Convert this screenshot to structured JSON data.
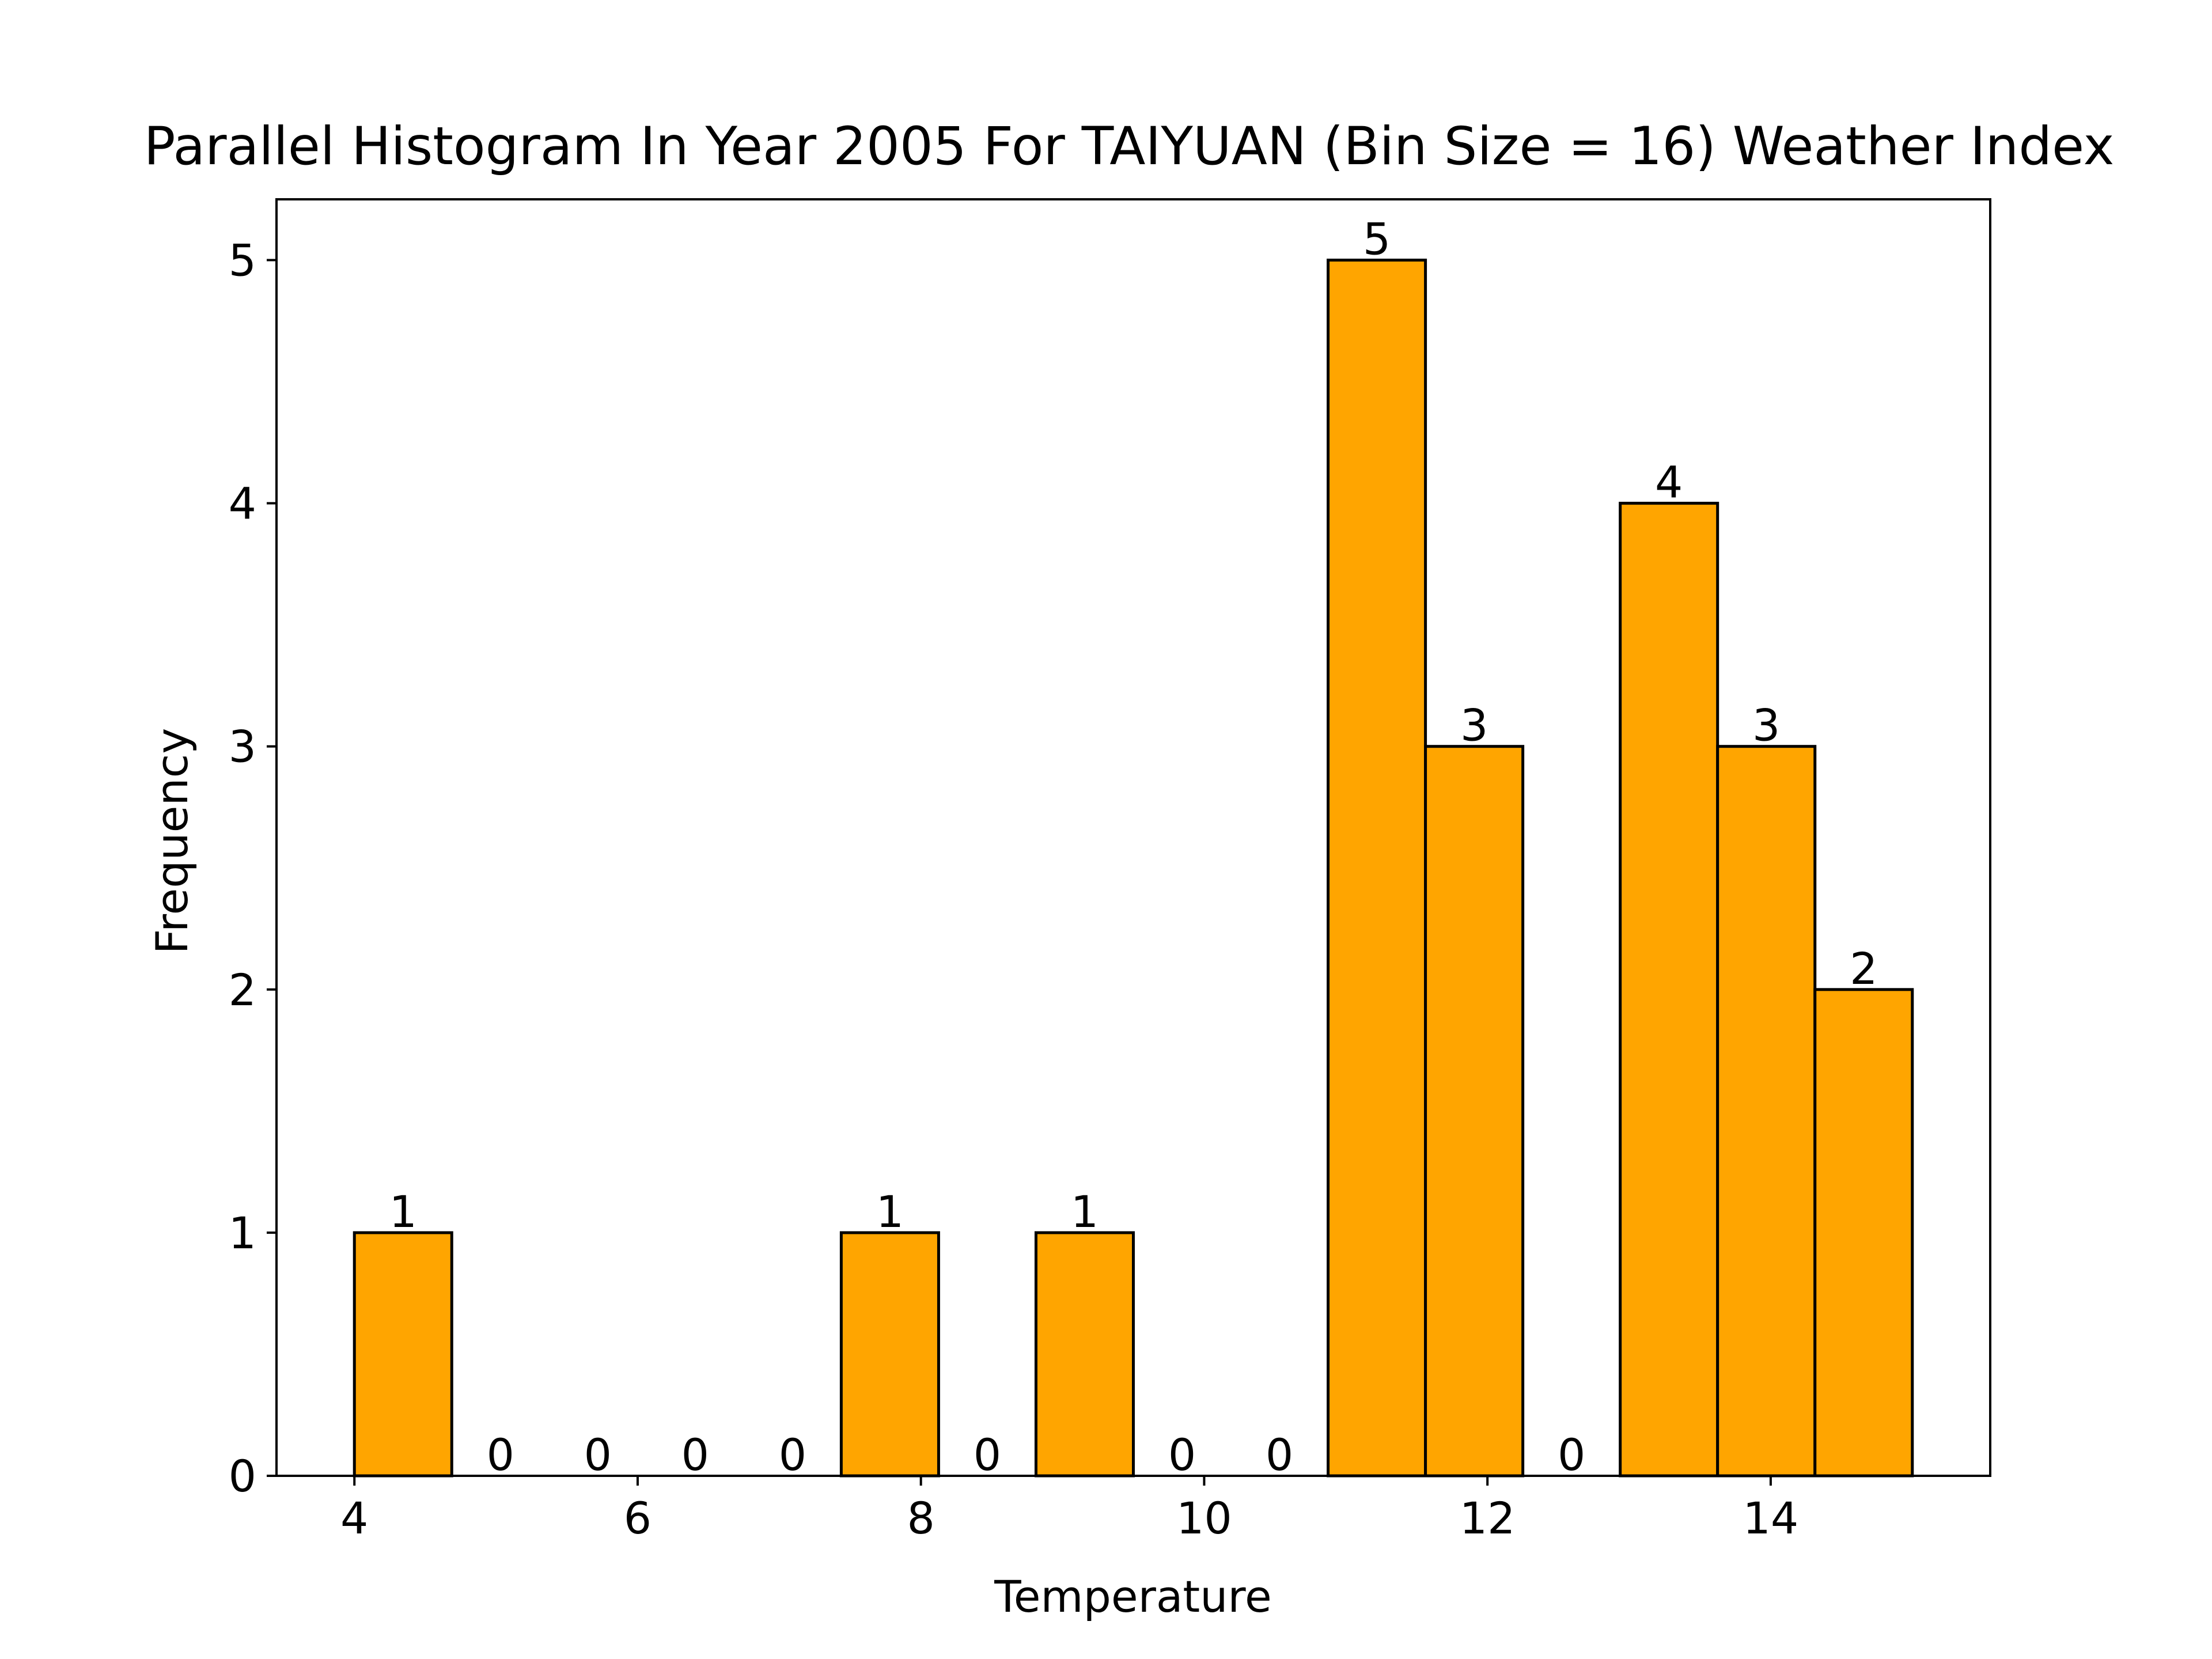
{
  "chart_data": {
    "type": "bar",
    "title": "Parallel Histogram In Year 2005 For TAIYUAN (Bin Size = 16) Weather Index",
    "xlabel": "Temperature",
    "ylabel": "Frequency",
    "bin_edges": [
      4.0,
      4.6875,
      5.375,
      6.0625,
      6.75,
      7.4375,
      8.125,
      8.8125,
      9.5,
      10.1875,
      10.875,
      11.5625,
      12.25,
      12.9375,
      13.625,
      14.3125,
      15.0
    ],
    "values": [
      1,
      0,
      0,
      0,
      0,
      1,
      0,
      1,
      0,
      0,
      5,
      3,
      0,
      4,
      3,
      2
    ],
    "xlim": [
      3.45,
      15.55
    ],
    "ylim": [
      0,
      5.25
    ],
    "xticks": [
      4,
      6,
      8,
      10,
      12,
      14
    ],
    "yticks": [
      0,
      1,
      2,
      3,
      4,
      5
    ],
    "bar_color": "#ffa500",
    "edge_color": "#000000",
    "grid": false
  }
}
